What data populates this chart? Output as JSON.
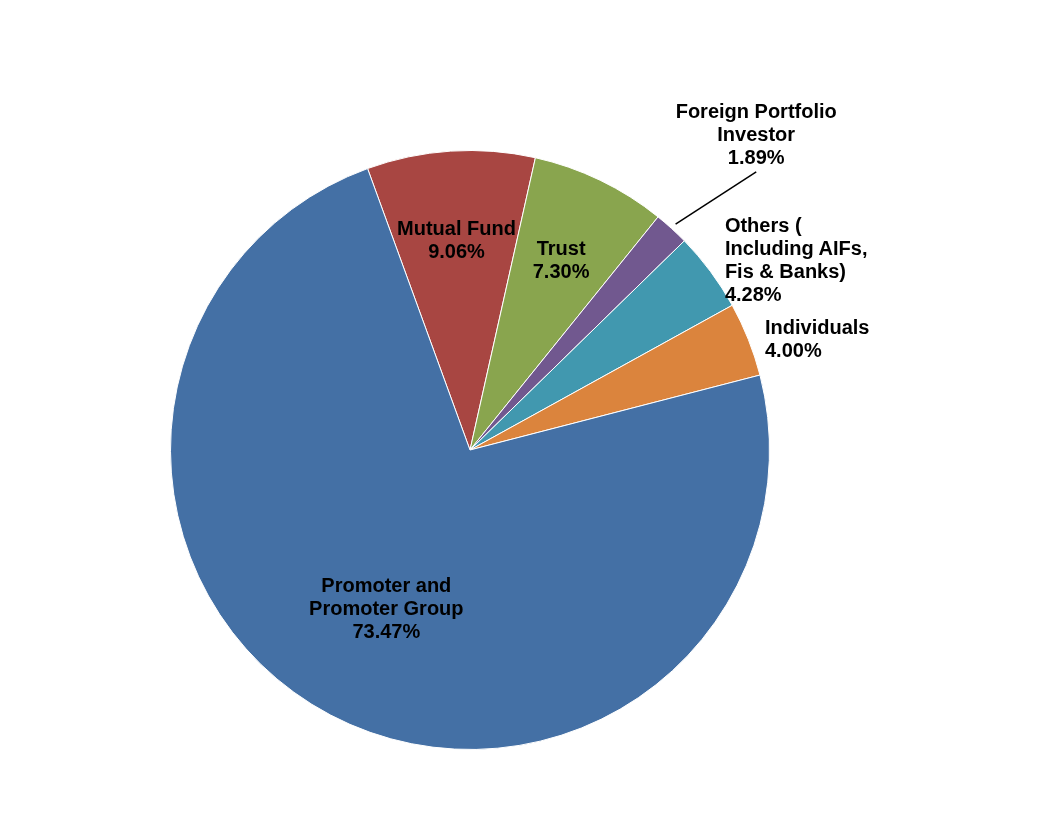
{
  "chart_data": {
    "type": "pie",
    "categories": [
      "Mutual Fund",
      "Trust",
      "Foreign Portfolio Investor",
      "Others ( Including AIFs, Fis & Banks)",
      "Individuals",
      "Promoter and Promoter Group"
    ],
    "values": [
      9.06,
      7.3,
      1.89,
      4.28,
      4.0,
      73.47
    ],
    "colors": [
      "#a84642",
      "#89a54e",
      "#71588f",
      "#4198af",
      "#db843d",
      "#4470a5"
    ],
    "value_labels": [
      "9.06%",
      "7.30%",
      "1.89%",
      "4.28%",
      "4.00%",
      "73.47%"
    ],
    "legend": false
  }
}
